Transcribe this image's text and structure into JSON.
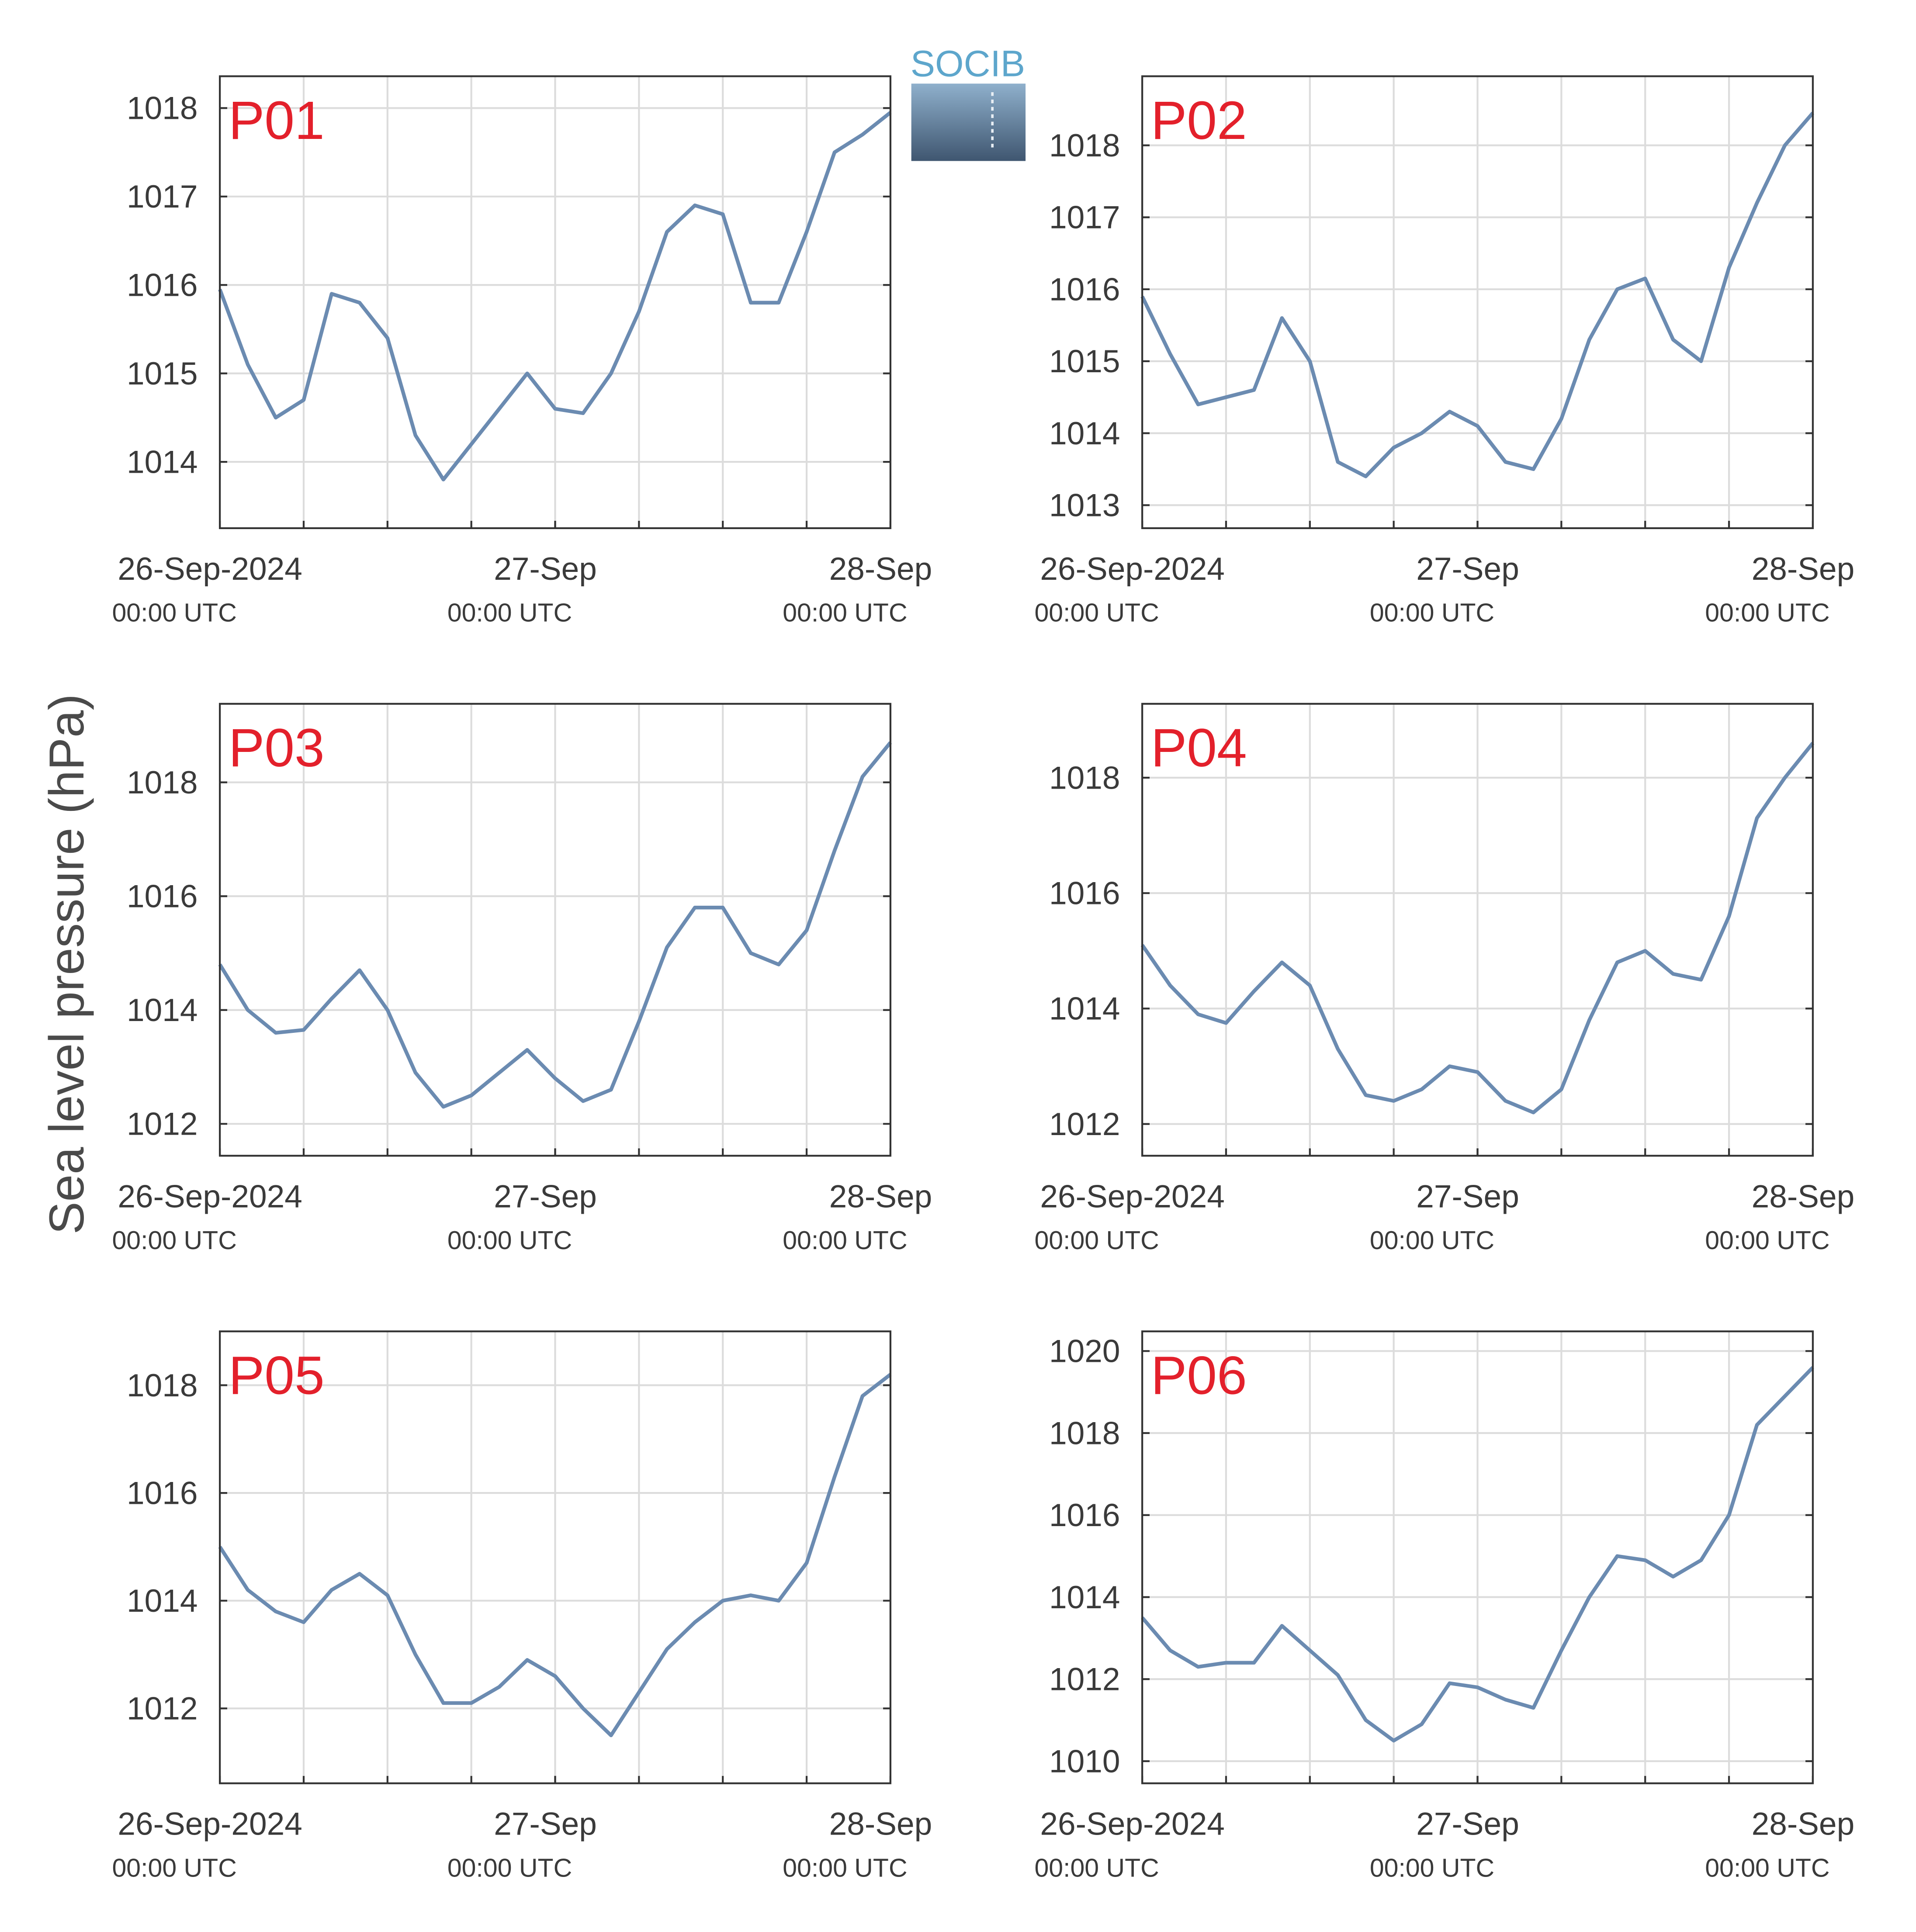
{
  "ylabel": "Sea level pressure (hPa)",
  "logo": "SOCIB",
  "chart_data": [
    {
      "type": "line",
      "title": "P01",
      "color": "#6b8bb1",
      "grid": true,
      "x": [
        "2024-09-26T00:00",
        "2024-09-26T02:00",
        "2024-09-26T04:00",
        "2024-09-26T06:00",
        "2024-09-26T08:00",
        "2024-09-26T10:00",
        "2024-09-26T12:00",
        "2024-09-26T14:00",
        "2024-09-26T16:00",
        "2024-09-26T18:00",
        "2024-09-26T20:00",
        "2024-09-26T22:00",
        "2024-09-27T00:00",
        "2024-09-27T02:00",
        "2024-09-27T04:00",
        "2024-09-27T06:00",
        "2024-09-27T08:00",
        "2024-09-27T10:00",
        "2024-09-27T12:00",
        "2024-09-27T14:00",
        "2024-09-27T16:00",
        "2024-09-27T18:00",
        "2024-09-27T20:00",
        "2024-09-27T22:00",
        "2024-09-28T00:00"
      ],
      "values": [
        1015.95,
        1015.1,
        1014.5,
        1014.7,
        1015.9,
        1015.8,
        1015.4,
        1014.3,
        1013.8,
        1014.2,
        1014.6,
        1015.0,
        1014.6,
        1014.55,
        1015.0,
        1015.7,
        1016.6,
        1016.9,
        1016.8,
        1015.8,
        1015.8,
        1016.6,
        1017.5,
        1017.7,
        1017.95
      ],
      "xlim": [
        "2024-09-26T00:00",
        "2024-09-28T00:00"
      ],
      "xticks": [
        {
          "value": "2024-09-26T00:00",
          "label": "26-Sep-2024",
          "sublabel": "00:00 UTC"
        },
        {
          "value": "2024-09-27T00:00",
          "label": "27-Sep",
          "sublabel": "00:00 UTC"
        },
        {
          "value": "2024-09-28T00:00",
          "label": "28-Sep",
          "sublabel": "00:00 UTC"
        }
      ],
      "xgrid": [
        "2024-09-26T06:00",
        "2024-09-26T12:00",
        "2024-09-26T18:00",
        "2024-09-27T00:00",
        "2024-09-27T06:00",
        "2024-09-27T12:00",
        "2024-09-27T18:00"
      ],
      "ylim": [
        1013.25,
        1018.36
      ],
      "yticks": [
        1014,
        1015,
        1016,
        1017,
        1018
      ]
    },
    {
      "type": "line",
      "title": "P02",
      "color": "#6b8bb1",
      "grid": true,
      "x": [
        "2024-09-26T00:00",
        "2024-09-26T02:00",
        "2024-09-26T04:00",
        "2024-09-26T06:00",
        "2024-09-26T08:00",
        "2024-09-26T10:00",
        "2024-09-26T12:00",
        "2024-09-26T14:00",
        "2024-09-26T16:00",
        "2024-09-26T18:00",
        "2024-09-26T20:00",
        "2024-09-26T22:00",
        "2024-09-27T00:00",
        "2024-09-27T02:00",
        "2024-09-27T04:00",
        "2024-09-27T06:00",
        "2024-09-27T08:00",
        "2024-09-27T10:00",
        "2024-09-27T12:00",
        "2024-09-27T14:00",
        "2024-09-27T16:00",
        "2024-09-27T18:00",
        "2024-09-27T20:00",
        "2024-09-27T22:00",
        "2024-09-28T00:00"
      ],
      "values": [
        1015.9,
        1015.1,
        1014.4,
        1014.5,
        1014.6,
        1015.6,
        1015.0,
        1013.6,
        1013.4,
        1013.8,
        1014.0,
        1014.3,
        1014.1,
        1013.6,
        1013.5,
        1014.2,
        1015.3,
        1016.0,
        1016.15,
        1015.3,
        1015.0,
        1016.3,
        1017.2,
        1018.0,
        1018.45
      ],
      "xlim": [
        "2024-09-26T00:00",
        "2024-09-28T00:00"
      ],
      "xticks": [
        {
          "value": "2024-09-26T00:00",
          "label": "26-Sep-2024",
          "sublabel": "00:00 UTC"
        },
        {
          "value": "2024-09-27T00:00",
          "label": "27-Sep",
          "sublabel": "00:00 UTC"
        },
        {
          "value": "2024-09-28T00:00",
          "label": "28-Sep",
          "sublabel": "00:00 UTC"
        }
      ],
      "xgrid": [
        "2024-09-26T06:00",
        "2024-09-26T12:00",
        "2024-09-26T18:00",
        "2024-09-27T00:00",
        "2024-09-27T06:00",
        "2024-09-27T12:00",
        "2024-09-27T18:00"
      ],
      "ylim": [
        1012.68,
        1018.96
      ],
      "yticks": [
        1013,
        1014,
        1015,
        1016,
        1017,
        1018
      ]
    },
    {
      "type": "line",
      "title": "P03",
      "color": "#6b8bb1",
      "grid": true,
      "x": [
        "2024-09-26T00:00",
        "2024-09-26T02:00",
        "2024-09-26T04:00",
        "2024-09-26T06:00",
        "2024-09-26T08:00",
        "2024-09-26T10:00",
        "2024-09-26T12:00",
        "2024-09-26T14:00",
        "2024-09-26T16:00",
        "2024-09-26T18:00",
        "2024-09-26T20:00",
        "2024-09-26T22:00",
        "2024-09-27T00:00",
        "2024-09-27T02:00",
        "2024-09-27T04:00",
        "2024-09-27T06:00",
        "2024-09-27T08:00",
        "2024-09-27T10:00",
        "2024-09-27T12:00",
        "2024-09-27T14:00",
        "2024-09-27T16:00",
        "2024-09-27T18:00",
        "2024-09-27T20:00",
        "2024-09-27T22:00",
        "2024-09-28T00:00"
      ],
      "values": [
        1014.8,
        1014.0,
        1013.6,
        1013.65,
        1014.2,
        1014.7,
        1014.0,
        1012.9,
        1012.3,
        1012.5,
        1012.9,
        1013.3,
        1012.8,
        1012.4,
        1012.6,
        1013.8,
        1015.1,
        1015.8,
        1015.8,
        1015.0,
        1014.8,
        1015.4,
        1016.8,
        1018.1,
        1018.7
      ],
      "xlim": [
        "2024-09-26T00:00",
        "2024-09-28T00:00"
      ],
      "xticks": [
        {
          "value": "2024-09-26T00:00",
          "label": "26-Sep-2024",
          "sublabel": "00:00 UTC"
        },
        {
          "value": "2024-09-27T00:00",
          "label": "27-Sep",
          "sublabel": "00:00 UTC"
        },
        {
          "value": "2024-09-28T00:00",
          "label": "28-Sep",
          "sublabel": "00:00 UTC"
        }
      ],
      "xgrid": [
        "2024-09-26T06:00",
        "2024-09-26T12:00",
        "2024-09-26T18:00",
        "2024-09-27T00:00",
        "2024-09-27T06:00",
        "2024-09-27T12:00",
        "2024-09-27T18:00"
      ],
      "ylim": [
        1011.44,
        1019.38
      ],
      "yticks": [
        1012,
        1014,
        1016,
        1018
      ]
    },
    {
      "type": "line",
      "title": "P04",
      "color": "#6b8bb1",
      "grid": true,
      "x": [
        "2024-09-26T00:00",
        "2024-09-26T02:00",
        "2024-09-26T04:00",
        "2024-09-26T06:00",
        "2024-09-26T08:00",
        "2024-09-26T10:00",
        "2024-09-26T12:00",
        "2024-09-26T14:00",
        "2024-09-26T16:00",
        "2024-09-26T18:00",
        "2024-09-26T20:00",
        "2024-09-26T22:00",
        "2024-09-27T00:00",
        "2024-09-27T02:00",
        "2024-09-27T04:00",
        "2024-09-27T06:00",
        "2024-09-27T08:00",
        "2024-09-27T10:00",
        "2024-09-27T12:00",
        "2024-09-27T14:00",
        "2024-09-27T16:00",
        "2024-09-27T18:00",
        "2024-09-27T20:00",
        "2024-09-27T22:00",
        "2024-09-28T00:00"
      ],
      "values": [
        1015.1,
        1014.4,
        1013.9,
        1013.75,
        1014.3,
        1014.8,
        1014.4,
        1013.3,
        1012.5,
        1012.4,
        1012.6,
        1013.0,
        1012.9,
        1012.4,
        1012.2,
        1012.6,
        1013.8,
        1014.8,
        1015.0,
        1014.6,
        1014.5,
        1015.6,
        1017.3,
        1018.0,
        1018.6
      ],
      "xlim": [
        "2024-09-26T00:00",
        "2024-09-28T00:00"
      ],
      "xticks": [
        {
          "value": "2024-09-26T00:00",
          "label": "26-Sep-2024",
          "sublabel": "00:00 UTC"
        },
        {
          "value": "2024-09-27T00:00",
          "label": "27-Sep",
          "sublabel": "00:00 UTC"
        },
        {
          "value": "2024-09-28T00:00",
          "label": "28-Sep",
          "sublabel": "00:00 UTC"
        }
      ],
      "xgrid": [
        "2024-09-26T06:00",
        "2024-09-26T12:00",
        "2024-09-26T18:00",
        "2024-09-27T00:00",
        "2024-09-27T06:00",
        "2024-09-27T12:00",
        "2024-09-27T18:00"
      ],
      "ylim": [
        1011.45,
        1019.28
      ],
      "yticks": [
        1012,
        1014,
        1016,
        1018
      ]
    },
    {
      "type": "line",
      "title": "P05",
      "color": "#6b8bb1",
      "grid": true,
      "x": [
        "2024-09-26T00:00",
        "2024-09-26T02:00",
        "2024-09-26T04:00",
        "2024-09-26T06:00",
        "2024-09-26T08:00",
        "2024-09-26T10:00",
        "2024-09-26T12:00",
        "2024-09-26T14:00",
        "2024-09-26T16:00",
        "2024-09-26T18:00",
        "2024-09-26T20:00",
        "2024-09-26T22:00",
        "2024-09-27T00:00",
        "2024-09-27T02:00",
        "2024-09-27T04:00",
        "2024-09-27T06:00",
        "2024-09-27T08:00",
        "2024-09-27T10:00",
        "2024-09-27T12:00",
        "2024-09-27T14:00",
        "2024-09-27T16:00",
        "2024-09-27T18:00",
        "2024-09-27T20:00",
        "2024-09-27T22:00",
        "2024-09-28T00:00"
      ],
      "values": [
        1015.0,
        1014.2,
        1013.8,
        1013.6,
        1014.2,
        1014.5,
        1014.1,
        1013.0,
        1012.1,
        1012.1,
        1012.4,
        1012.9,
        1012.6,
        1012.0,
        1011.5,
        1012.3,
        1013.1,
        1013.6,
        1014.0,
        1014.1,
        1014.0,
        1014.7,
        1016.3,
        1017.8,
        1018.2
      ],
      "xlim": [
        "2024-09-26T00:00",
        "2024-09-28T00:00"
      ],
      "xticks": [
        {
          "value": "2024-09-26T00:00",
          "label": "26-Sep-2024",
          "sublabel": "00:00 UTC"
        },
        {
          "value": "2024-09-27T00:00",
          "label": "27-Sep",
          "sublabel": "00:00 UTC"
        },
        {
          "value": "2024-09-28T00:00",
          "label": "28-Sep",
          "sublabel": "00:00 UTC"
        }
      ],
      "xgrid": [
        "2024-09-26T06:00",
        "2024-09-26T12:00",
        "2024-09-26T18:00",
        "2024-09-27T00:00",
        "2024-09-27T06:00",
        "2024-09-27T12:00",
        "2024-09-27T18:00"
      ],
      "ylim": [
        1010.61,
        1019.0
      ],
      "yticks": [
        1012,
        1014,
        1016,
        1018
      ]
    },
    {
      "type": "line",
      "title": "P06",
      "color": "#6b8bb1",
      "grid": true,
      "x": [
        "2024-09-26T00:00",
        "2024-09-26T02:00",
        "2024-09-26T04:00",
        "2024-09-26T06:00",
        "2024-09-26T08:00",
        "2024-09-26T10:00",
        "2024-09-26T12:00",
        "2024-09-26T14:00",
        "2024-09-26T16:00",
        "2024-09-26T18:00",
        "2024-09-26T20:00",
        "2024-09-26T22:00",
        "2024-09-27T00:00",
        "2024-09-27T02:00",
        "2024-09-27T04:00",
        "2024-09-27T06:00",
        "2024-09-27T08:00",
        "2024-09-27T10:00",
        "2024-09-27T12:00",
        "2024-09-27T14:00",
        "2024-09-27T16:00",
        "2024-09-27T18:00",
        "2024-09-27T20:00",
        "2024-09-27T22:00",
        "2024-09-28T00:00"
      ],
      "values": [
        1013.5,
        1012.7,
        1012.3,
        1012.4,
        1012.4,
        1013.3,
        1012.7,
        1012.1,
        1011.0,
        1010.5,
        1010.9,
        1011.9,
        1011.8,
        1011.5,
        1011.3,
        1012.7,
        1014.0,
        1015.0,
        1014.9,
        1014.5,
        1014.9,
        1016.0,
        1018.2,
        1018.9,
        1019.6
      ],
      "xlim": [
        "2024-09-26T00:00",
        "2024-09-28T00:00"
      ],
      "xticks": [
        {
          "value": "2024-09-26T00:00",
          "label": "26-Sep-2024",
          "sublabel": "00:00 UTC"
        },
        {
          "value": "2024-09-27T00:00",
          "label": "27-Sep",
          "sublabel": "00:00 UTC"
        },
        {
          "value": "2024-09-28T00:00",
          "label": "28-Sep",
          "sublabel": "00:00 UTC"
        }
      ],
      "xgrid": [
        "2024-09-26T06:00",
        "2024-09-26T12:00",
        "2024-09-26T18:00",
        "2024-09-27T00:00",
        "2024-09-27T06:00",
        "2024-09-27T12:00",
        "2024-09-27T18:00"
      ],
      "ylim": [
        1009.46,
        1020.48
      ],
      "yticks": [
        1010,
        1012,
        1014,
        1016,
        1018,
        1020
      ]
    }
  ]
}
